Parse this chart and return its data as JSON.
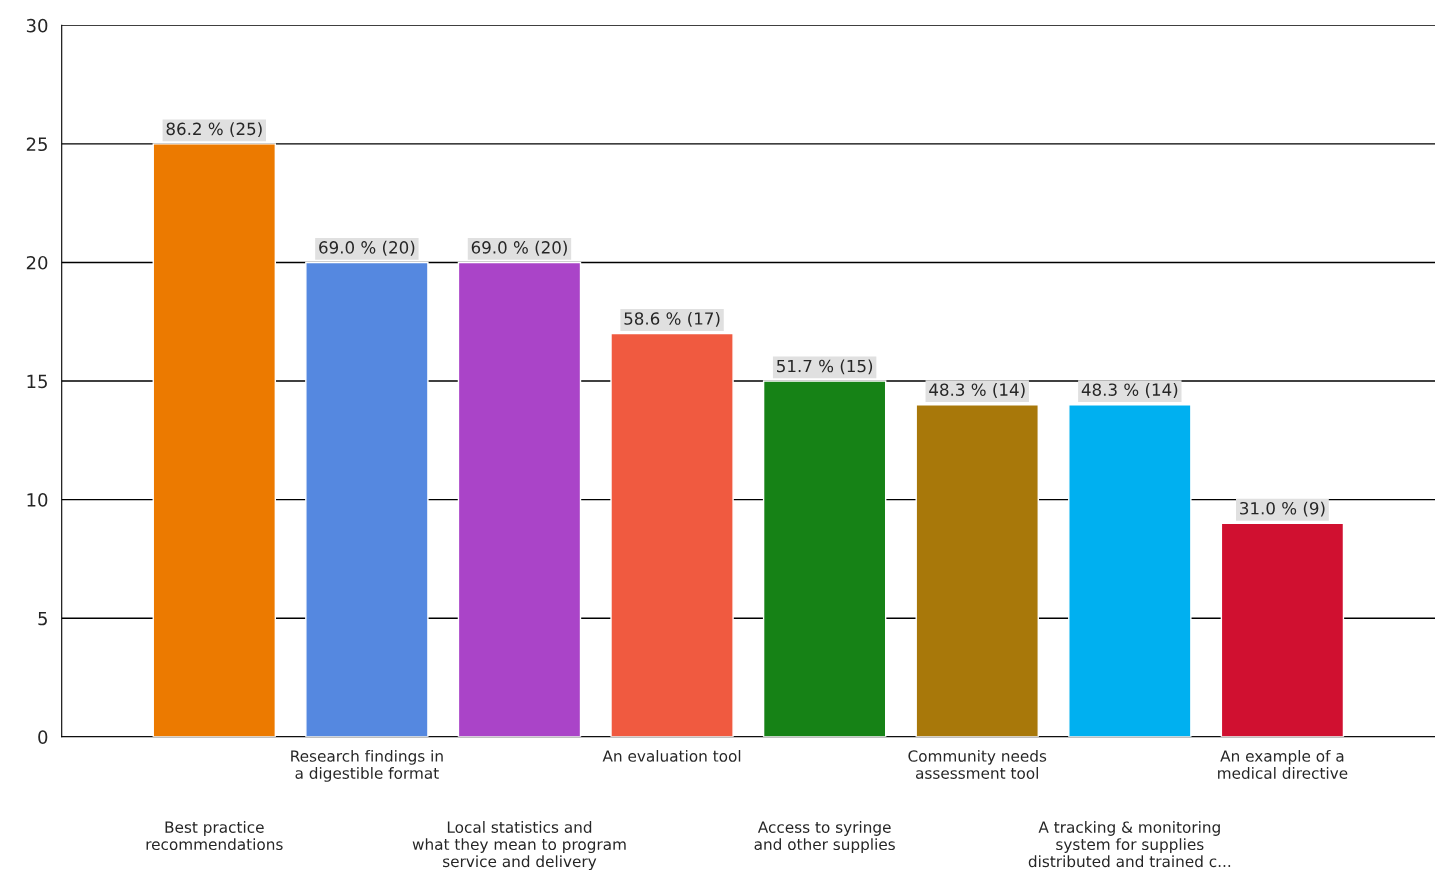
{
  "chart_data": {
    "type": "bar",
    "categories": [
      "Best practice\nrecommendations",
      "Research findings in\na digestible format",
      "Local statistics and\nwhat they mean to program\nservice and delivery",
      "An evaluation tool",
      "Access to syringe\nand other supplies",
      "Community needs\nassessment tool",
      "A tracking & monitoring\nsystem for supplies\ndistributed and trained c...",
      "An example of a\nmedical directive"
    ],
    "values": [
      25,
      20,
      20,
      17,
      15,
      14,
      14,
      9
    ],
    "colors": [
      "#ec7a00",
      "#5588e0",
      "#aa44c8",
      "#f05a40",
      "#168216",
      "#a8780a",
      "#00b0f0",
      "#d01030"
    ],
    "value_labels": [
      "86.2 % (25)",
      "69.0 % (20)",
      "69.0 % (20)",
      "58.6 % (17)",
      "51.7 % (15)",
      "48.3 % (14)",
      "48.3 % (14)",
      "31.0 % (9)"
    ],
    "ylim": [
      0,
      30
    ],
    "yticks": [
      0,
      5,
      10,
      15,
      20,
      25,
      30
    ],
    "grid": "y"
  }
}
